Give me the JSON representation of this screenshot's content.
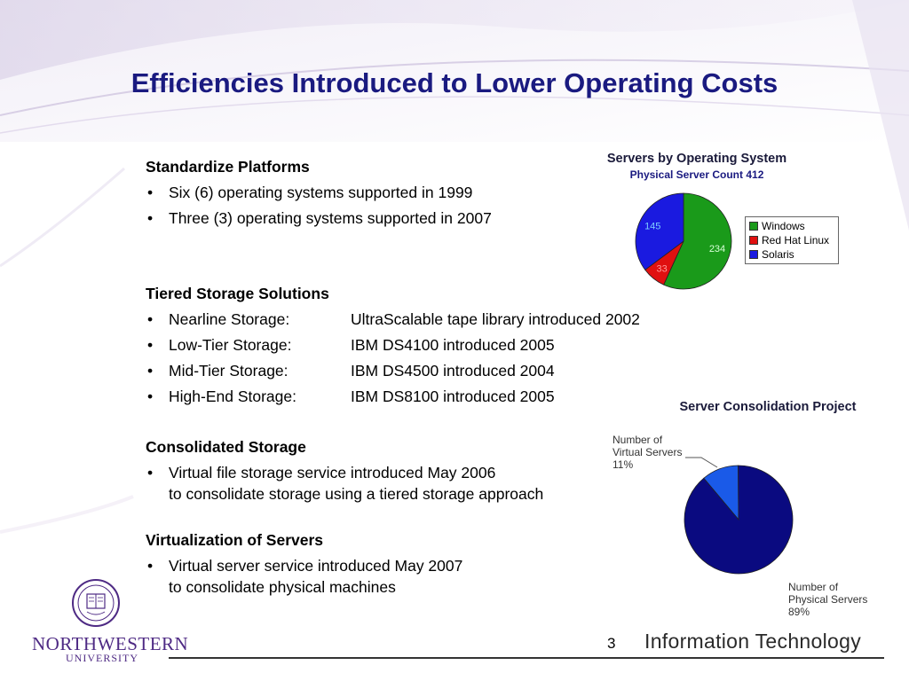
{
  "slide": {
    "title": "Efficiencies Introduced to Lower Operating Costs",
    "page_number": "3",
    "brand": "Information Technology",
    "university_name": "NORTHWESTERN",
    "university_sub": "UNIVERSITY"
  },
  "sections": {
    "standardize": {
      "heading": "Standardize Platforms",
      "bullets": [
        "Six (6) operating systems supported in 1999",
        "Three (3) operating systems supported in 2007"
      ]
    },
    "tiered": {
      "heading": "Tiered Storage Solutions",
      "rows": [
        {
          "term": "Nearline Storage:",
          "desc": "UltraScalable tape library introduced 2002"
        },
        {
          "term": "Low-Tier Storage:",
          "desc": "IBM DS4100 introduced 2005"
        },
        {
          "term": "Mid-Tier Storage:",
          "desc": "IBM DS4500 introduced 2004"
        },
        {
          "term": "High-End Storage:",
          "desc": "IBM DS8100 introduced 2005"
        }
      ]
    },
    "consolidated": {
      "heading": "Consolidated Storage",
      "line1": "Virtual file storage service introduced May 2006",
      "line2": "to consolidate storage using a tiered storage approach"
    },
    "virtualization": {
      "heading": "Virtualization of Servers",
      "line1": "Virtual server service introduced May 2007",
      "line2": "to consolidate physical machines"
    }
  },
  "colors": {
    "title": "#1a1a80",
    "windows": "#1a9a1a",
    "redhat": "#e01010",
    "solaris": "#1a1ae0",
    "physical": "#0a0a80",
    "virtual": "#1a5ae8",
    "university": "#4e2a84"
  },
  "chart_data": [
    {
      "type": "pie",
      "title": "Servers by Operating System",
      "subtitle": "Physical Server Count 412",
      "categories": [
        "Windows",
        "Red Hat Linux",
        "Solaris"
      ],
      "values": [
        234,
        33,
        145
      ],
      "value_labels": [
        "234",
        "33",
        "145"
      ],
      "legend": "right"
    },
    {
      "type": "pie",
      "title": "Server Consolidation Project",
      "categories": [
        "Number of Virtual Servers",
        "Number of Physical Servers"
      ],
      "values": [
        11,
        89
      ],
      "value_labels": [
        "11%",
        "89%"
      ],
      "annotations": [
        {
          "line1": "Number of",
          "line2": "Virtual Servers",
          "line3": "11%"
        },
        {
          "line1": "Number of",
          "line2": "Physical Servers",
          "line3": "89%"
        }
      ]
    }
  ]
}
